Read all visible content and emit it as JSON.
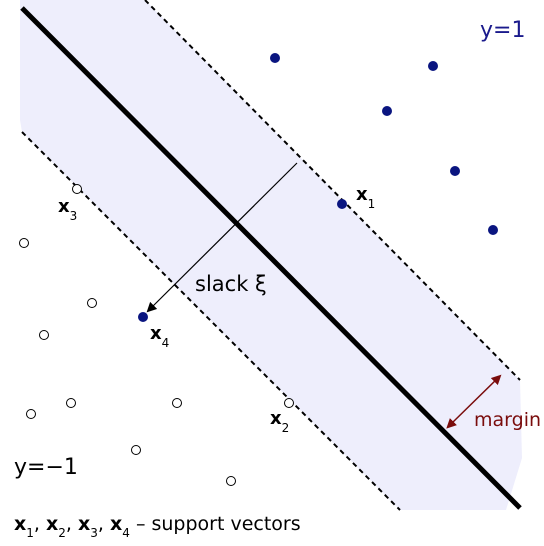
{
  "labels": {
    "class_positive": "y=1",
    "class_negative": "y=−1",
    "slack": "slack ξ",
    "margin": "margin",
    "support_vectors_caption": {
      "items": [
        {
          "var": "x",
          "sub": "1"
        },
        {
          "var": "x",
          "sub": "2"
        },
        {
          "var": "x",
          "sub": "3"
        },
        {
          "var": "x",
          "sub": "4"
        }
      ],
      "separator": ", ",
      "suffix": " – support vectors"
    }
  },
  "point_labels": [
    {
      "var": "x",
      "sub": "1"
    },
    {
      "var": "x",
      "sub": "2"
    },
    {
      "var": "x",
      "sub": "3"
    },
    {
      "var": "x",
      "sub": "4"
    }
  ],
  "colors": {
    "positive_point": "#0a1580",
    "margin_band": "#eeeefc",
    "class_positive_text": "#1a1a8c",
    "margin_text": "#7a0c0c",
    "boundary": "#000000"
  }
}
